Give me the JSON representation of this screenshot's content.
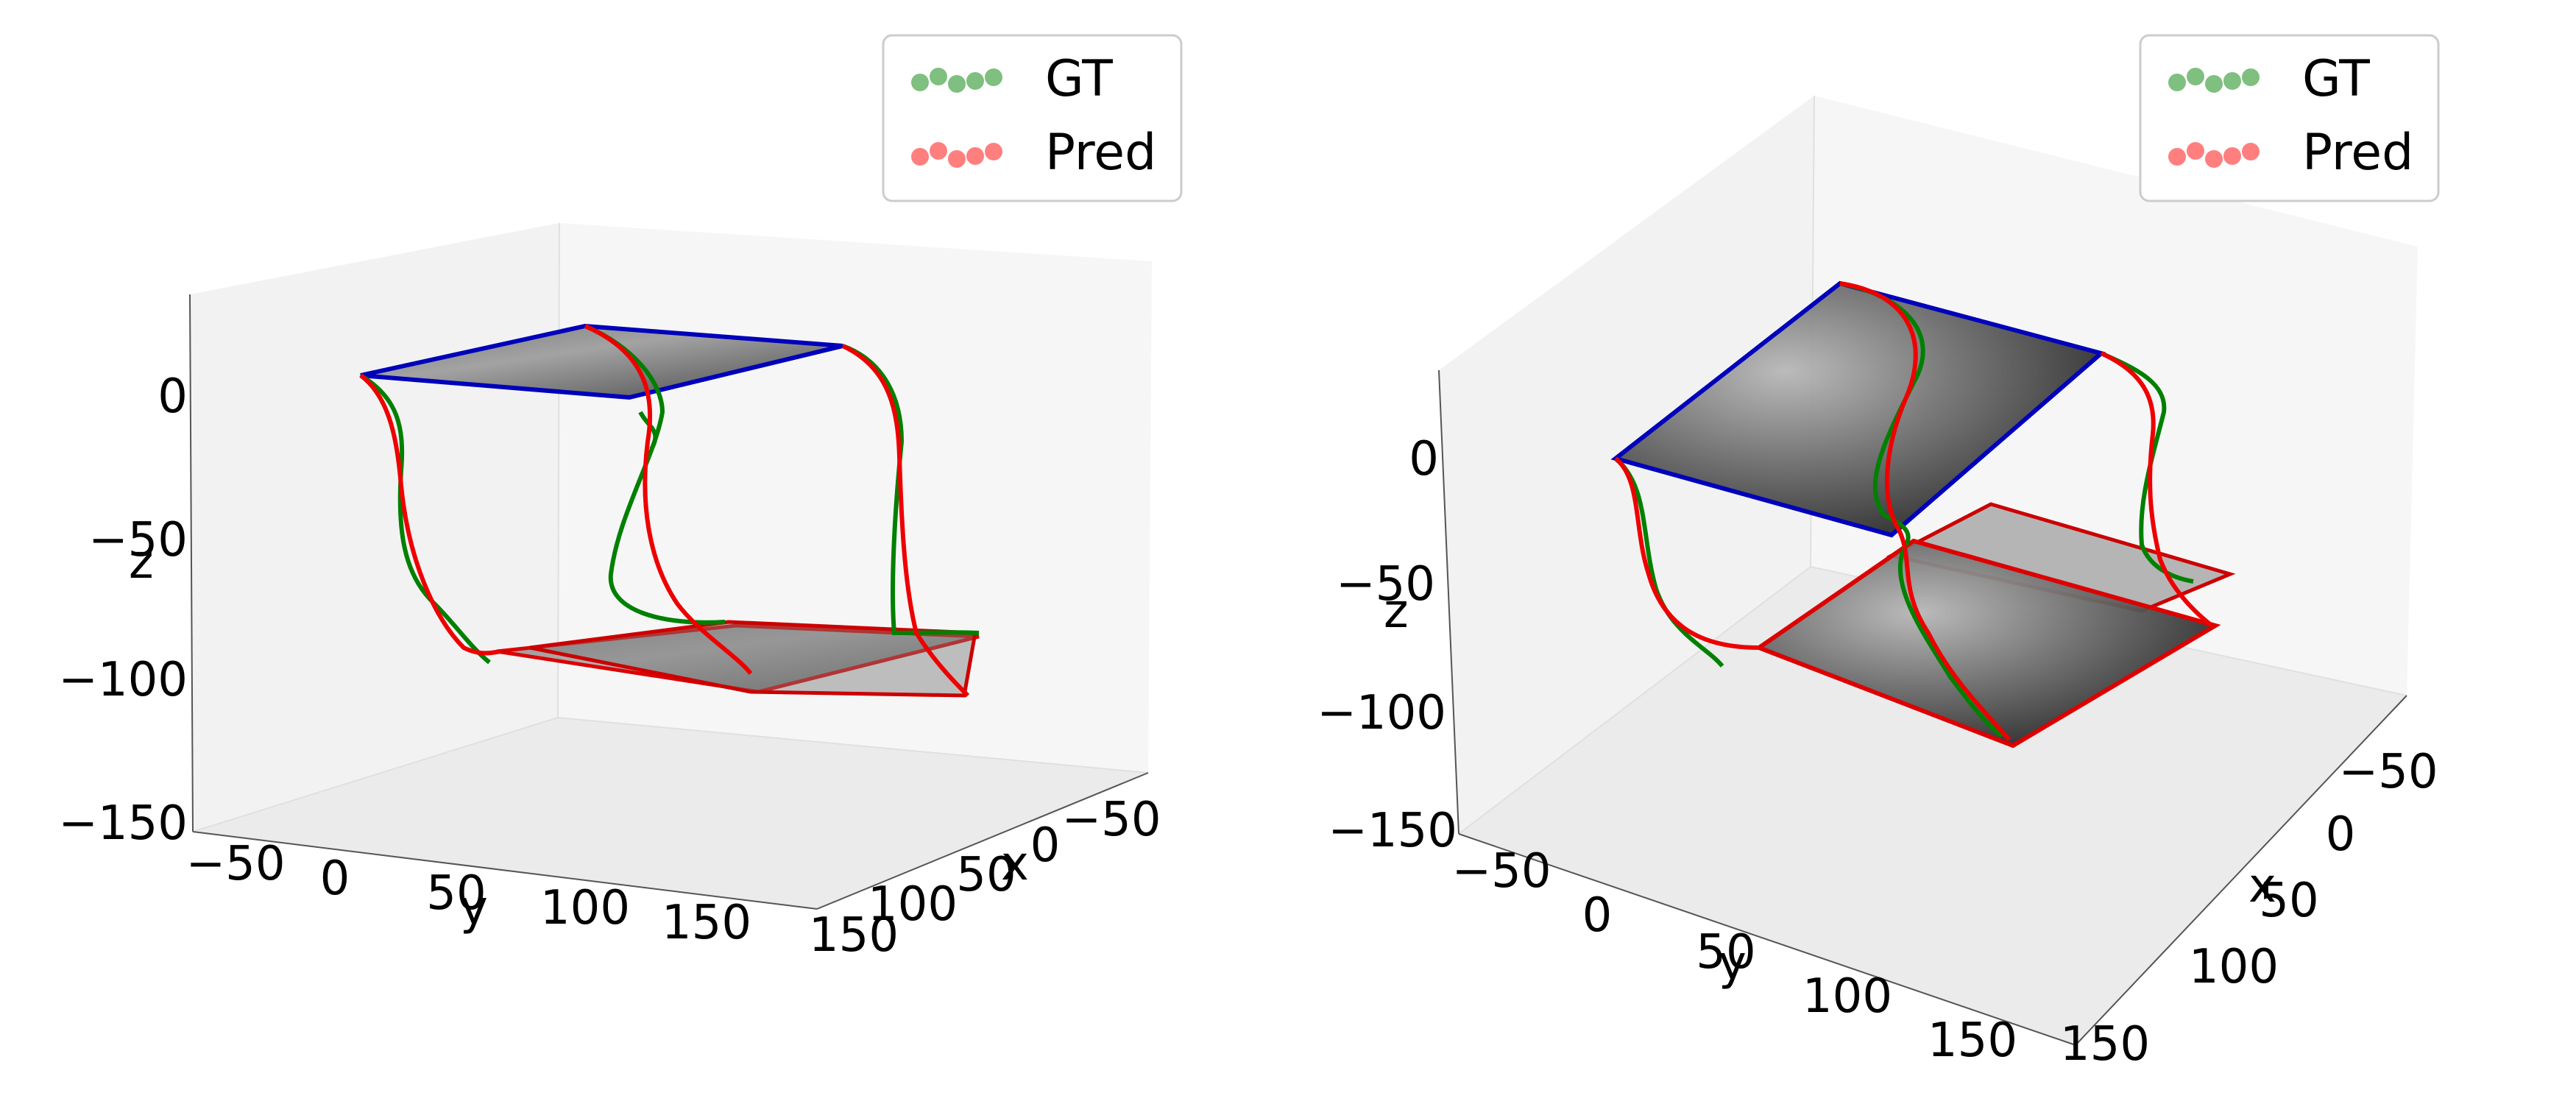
{
  "chart_data": [
    {
      "type": "line",
      "projection": "3d",
      "panel": "left",
      "title": "",
      "xlabel": "x",
      "ylabel": "y",
      "zlabel": "z",
      "x_ticks": [
        "150",
        "100",
        "50",
        "0",
        "−50"
      ],
      "y_ticks": [
        "−50",
        "0",
        "50",
        "100",
        "150"
      ],
      "z_ticks": [
        "0",
        "−50",
        "−100",
        "−150"
      ],
      "grid": false,
      "legend": {
        "placement": "top-right",
        "entries": [
          "GT",
          "Pred"
        ]
      },
      "series": [
        {
          "name": "GT",
          "color": "#008000",
          "marker_color": "#7fbf7f"
        },
        {
          "name": "Pred",
          "color": "#ff0000",
          "marker_color": "#ff7f7f"
        }
      ],
      "frames": [
        {
          "role": "reference",
          "edge_color": "#0000cc",
          "z": 0
        },
        {
          "role": "ground-truth",
          "edge_color": "#008000"
        },
        {
          "role": "predicted",
          "edge_color": "#cc0000"
        }
      ]
    },
    {
      "type": "line",
      "projection": "3d",
      "panel": "right",
      "title": "",
      "xlabel": "x",
      "ylabel": "y",
      "zlabel": "z",
      "x_ticks": [
        "−50",
        "0",
        "50",
        "100",
        "150"
      ],
      "y_ticks": [
        "−50",
        "0",
        "50",
        "100",
        "150"
      ],
      "z_ticks": [
        "0",
        "−50",
        "−100",
        "−150"
      ],
      "grid": false,
      "legend": {
        "placement": "top-right",
        "entries": [
          "GT",
          "Pred"
        ]
      },
      "series": [
        {
          "name": "GT",
          "color": "#008000",
          "marker_color": "#7fbf7f"
        },
        {
          "name": "Pred",
          "color": "#ff0000",
          "marker_color": "#ff7f7f"
        }
      ],
      "frames": [
        {
          "role": "reference",
          "edge_color": "#0000cc",
          "z": 0
        },
        {
          "role": "ground-truth",
          "edge_color": "#008000"
        },
        {
          "role": "predicted",
          "edge_color": "#cc0000"
        }
      ]
    }
  ]
}
